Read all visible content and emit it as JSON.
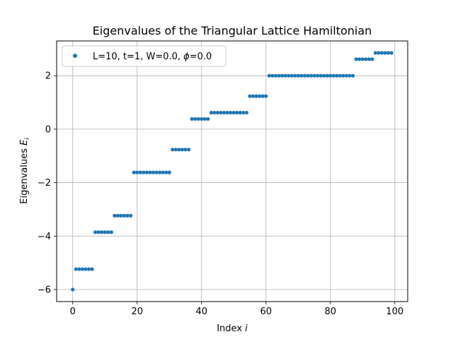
{
  "chart_data": {
    "type": "scatter",
    "title": "Eigenvalues of the Triangular Lattice Hamiltonian",
    "xlabel": "Index i",
    "ylabel": "Eigenvalues E_i",
    "xlim": [
      -5,
      104
    ],
    "ylim": [
      -6.45,
      3.3
    ],
    "xticks": [
      0,
      20,
      40,
      60,
      80,
      100
    ],
    "xtick_labels": [
      "0",
      "20",
      "40",
      "60",
      "80",
      "100"
    ],
    "yticks": [
      -6,
      -4,
      -2,
      0,
      2
    ],
    "ytick_labels": [
      "−6",
      "−4",
      "−2",
      "0",
      "2"
    ],
    "grid": true,
    "legend_position": "top-left",
    "color": "#1f77b4",
    "series": [
      {
        "name": "L=10, t=1, W=0.0, ϕ=0.0",
        "x": [
          0,
          1,
          2,
          3,
          4,
          5,
          6,
          7,
          8,
          9,
          10,
          11,
          12,
          13,
          14,
          15,
          16,
          17,
          18,
          19,
          20,
          21,
          22,
          23,
          24,
          25,
          26,
          27,
          28,
          29,
          30,
          31,
          32,
          33,
          34,
          35,
          36,
          37,
          38,
          39,
          40,
          41,
          42,
          43,
          44,
          45,
          46,
          47,
          48,
          49,
          50,
          51,
          52,
          53,
          54,
          55,
          56,
          57,
          58,
          59,
          60,
          61,
          62,
          63,
          64,
          65,
          66,
          67,
          68,
          69,
          70,
          71,
          72,
          73,
          74,
          75,
          76,
          77,
          78,
          79,
          80,
          81,
          82,
          83,
          84,
          85,
          86,
          87,
          88,
          89,
          90,
          91,
          92,
          93,
          94,
          95,
          96,
          97,
          98,
          99
        ],
        "y": [
          -6.0,
          -5.236,
          -5.236,
          -5.236,
          -5.236,
          -5.236,
          -5.236,
          -3.854,
          -3.854,
          -3.854,
          -3.854,
          -3.854,
          -3.854,
          -3.236,
          -3.236,
          -3.236,
          -3.236,
          -3.236,
          -3.236,
          -1.618,
          -1.618,
          -1.618,
          -1.618,
          -1.618,
          -1.618,
          -1.618,
          -1.618,
          -1.618,
          -1.618,
          -1.618,
          -1.618,
          -0.764,
          -0.764,
          -0.764,
          -0.764,
          -0.764,
          -0.764,
          0.382,
          0.382,
          0.382,
          0.382,
          0.382,
          0.382,
          0.618,
          0.618,
          0.618,
          0.618,
          0.618,
          0.618,
          0.618,
          0.618,
          0.618,
          0.618,
          0.618,
          0.618,
          1.236,
          1.236,
          1.236,
          1.236,
          1.236,
          1.236,
          2.0,
          2.0,
          2.0,
          2.0,
          2.0,
          2.0,
          2.0,
          2.0,
          2.0,
          2.0,
          2.0,
          2.0,
          2.0,
          2.0,
          2.0,
          2.0,
          2.0,
          2.0,
          2.0,
          2.0,
          2.0,
          2.0,
          2.0,
          2.0,
          2.0,
          2.0,
          2.0,
          2.618,
          2.618,
          2.618,
          2.618,
          2.618,
          2.618,
          2.854,
          2.854,
          2.854,
          2.854,
          2.854,
          2.854
        ]
      }
    ]
  }
}
